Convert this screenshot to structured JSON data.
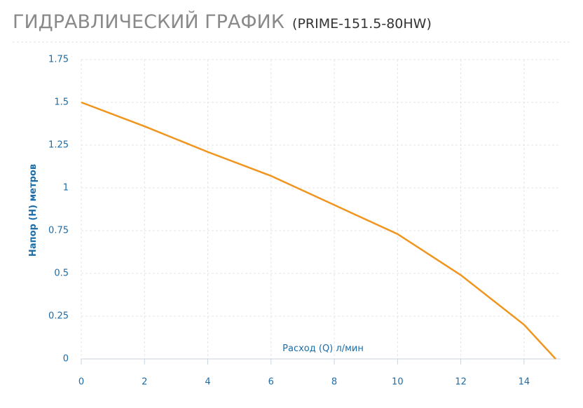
{
  "chart_data": {
    "type": "line",
    "title": "ГИДРАВЛИЧЕСКИЙ ГРАФИК",
    "subtitle": "(PRIME-151.5-80HW)",
    "x_label": "Расход (Q) л/мин",
    "y_label": "Напор (H) метров",
    "x": [
      0,
      2,
      4,
      6,
      8,
      10,
      12,
      14,
      15
    ],
    "values": [
      1.5,
      1.36,
      1.21,
      1.07,
      0.9,
      0.73,
      0.49,
      0.2,
      0
    ],
    "color": "#f0951e",
    "xlim": [
      0,
      15
    ],
    "xticks": [
      0,
      2,
      4,
      6,
      8,
      10,
      12,
      14
    ],
    "ylim": [
      0,
      1.75
    ],
    "yticks": [
      0,
      0.25,
      0.5,
      0.75,
      1,
      1.25,
      1.5,
      1.75
    ],
    "grid": true
  }
}
